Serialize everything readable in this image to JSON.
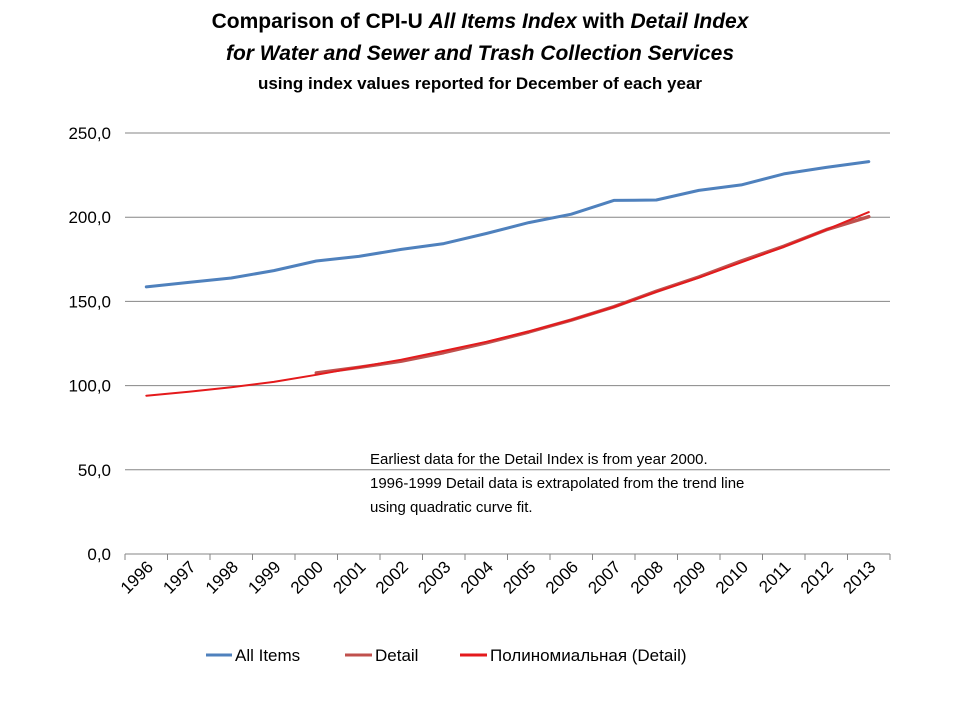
{
  "title": {
    "line1_pre": "Comparison of CPI-U ",
    "line1_em1": "All Items Index",
    "line1_mid": " with ",
    "line1_em2": "Detail Index",
    "line2": "for Water and Sewer and Trash Collection Services",
    "line3": "using index values reported for December of each year"
  },
  "annotation": {
    "line1": "Earliest data for the Detail Index is from year 2000.",
    "line2": "1996-1999 Detail data is extrapolated from the trend line",
    "line3": "using quadratic curve fit."
  },
  "chart_data": {
    "type": "line",
    "x": [
      "1996",
      "1997",
      "1998",
      "1999",
      "2000",
      "2001",
      "2002",
      "2003",
      "2004",
      "2005",
      "2006",
      "2007",
      "2008",
      "2009",
      "2010",
      "2011",
      "2012",
      "2013"
    ],
    "ylim": [
      0,
      250
    ],
    "yticks": [
      "0,0",
      "50,0",
      "100,0",
      "150,0",
      "200,0",
      "250,0"
    ],
    "grid": true,
    "legend_position": "bottom",
    "series": [
      {
        "name": "All Items",
        "color": "#4f81bd",
        "values": [
          158.6,
          161.3,
          163.9,
          168.3,
          174.0,
          176.7,
          180.9,
          184.3,
          190.3,
          196.8,
          201.8,
          210.0,
          210.2,
          215.9,
          219.2,
          225.7,
          229.6,
          233.0
        ]
      },
      {
        "name": "Detail",
        "color": "#c0504d",
        "start_index": 4,
        "values": [
          null,
          null,
          null,
          null,
          107.5,
          110.8,
          114.5,
          119.6,
          125.4,
          131.8,
          138.9,
          146.8,
          156.0,
          164.5,
          174.0,
          182.7,
          192.6,
          200.3
        ]
      },
      {
        "name": "Полиномиальная (Detail)",
        "color": "#e41a1c",
        "values": [
          94.0,
          96.3,
          99.0,
          102.2,
          106.4,
          110.9,
          115.4,
          120.6,
          126.0,
          132.1,
          139.0,
          146.7,
          155.7,
          164.1,
          173.2,
          182.4,
          192.6,
          203.0
        ]
      }
    ]
  }
}
